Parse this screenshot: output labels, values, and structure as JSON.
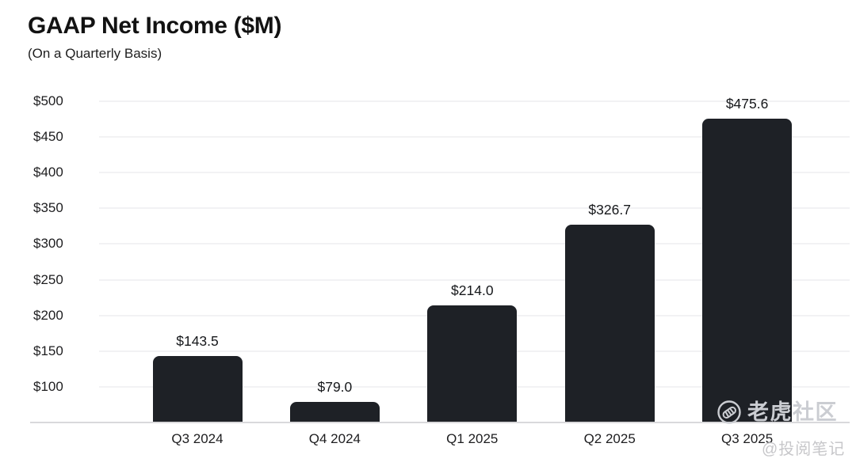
{
  "header": {
    "title": "GAAP Net Income ($M)",
    "subtitle": "(On a Quarterly Basis)"
  },
  "chart_data": {
    "type": "bar",
    "title": "GAAP Net Income ($M)",
    "subtitle": "(On a Quarterly Basis)",
    "categories": [
      "Q3 2024",
      "Q4 2024",
      "Q1 2025",
      "Q2 2025",
      "Q3 2025"
    ],
    "values": [
      143.5,
      79.0,
      214.0,
      326.7,
      475.6
    ],
    "value_labels": [
      "$143.5",
      "$79.0",
      "$214.0",
      "$326.7",
      "$475.6"
    ],
    "xlabel": "",
    "ylabel": "",
    "ylim": [
      50,
      500
    ],
    "yticks": [
      {
        "value": 100,
        "label": "$100"
      },
      {
        "value": 150,
        "label": "$150"
      },
      {
        "value": 200,
        "label": "$200"
      },
      {
        "value": 250,
        "label": "$250"
      },
      {
        "value": 300,
        "label": "$300"
      },
      {
        "value": 350,
        "label": "$350"
      },
      {
        "value": 400,
        "label": "$400"
      },
      {
        "value": 450,
        "label": "$450"
      },
      {
        "value": 500,
        "label": "$500"
      }
    ],
    "grid": true,
    "legend": false
  },
  "watermark": {
    "brand": "老虎社区",
    "handle": "@投阅笔记",
    "logo_icon": "tiger-circle-icon"
  },
  "colors": {
    "background": "#ffffff",
    "bar": "#1e2126",
    "gridline": "#f2f2f4",
    "axis_line": "#d9d9db",
    "title_text": "#121212",
    "tick_text": "#1d1d1f",
    "value_text": "#16181b",
    "watermark": "#cbcdd2",
    "handle": "#c7c7ca"
  }
}
